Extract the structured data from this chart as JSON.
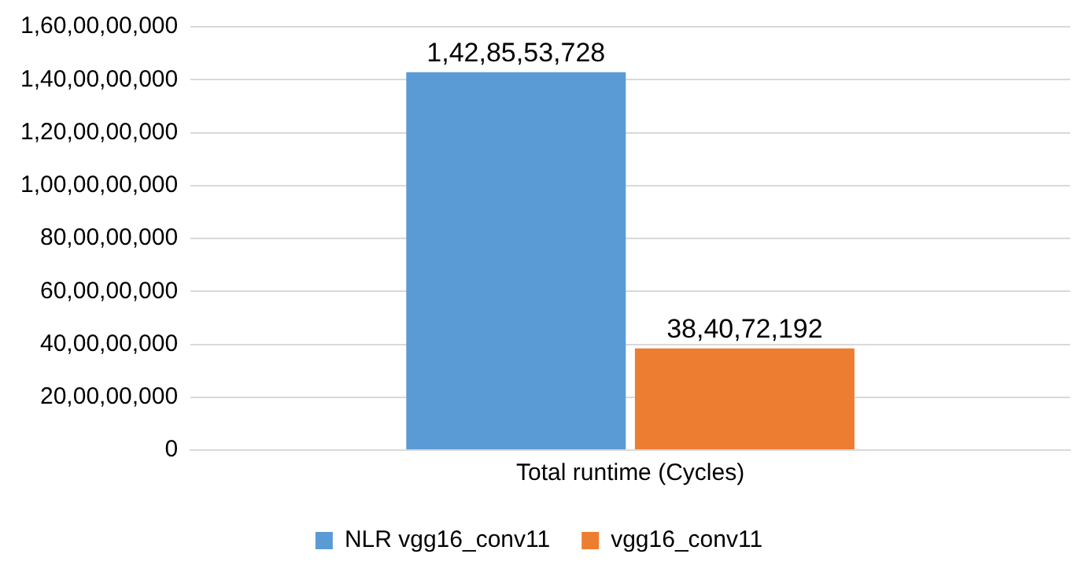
{
  "chart_data": {
    "type": "bar",
    "categories": [
      "Total runtime (Cycles)"
    ],
    "series": [
      {
        "name": "NLR vgg16_conv11",
        "color": "#5b9bd5",
        "values": [
          1428553728
        ],
        "value_labels": [
          "1,42,85,53,728"
        ]
      },
      {
        "name": "vgg16_conv11",
        "color": "#ed7d31",
        "values": [
          384072192
        ],
        "value_labels": [
          "38,40,72,192"
        ]
      }
    ],
    "ylim": [
      0,
      1600000000
    ],
    "yticks": [
      {
        "value": 0,
        "label": "0"
      },
      {
        "value": 200000000,
        "label": "20,00,00,000"
      },
      {
        "value": 400000000,
        "label": "40,00,00,000"
      },
      {
        "value": 600000000,
        "label": "60,00,00,000"
      },
      {
        "value": 800000000,
        "label": "80,00,00,000"
      },
      {
        "value": 1000000000,
        "label": "1,00,00,00,000"
      },
      {
        "value": 1200000000,
        "label": "1,20,00,00,000"
      },
      {
        "value": 1400000000,
        "label": "1,40,00,00,000"
      },
      {
        "value": 1600000000,
        "label": "1,60,00,00,000"
      }
    ],
    "grid": "y",
    "legend": "bottom"
  }
}
